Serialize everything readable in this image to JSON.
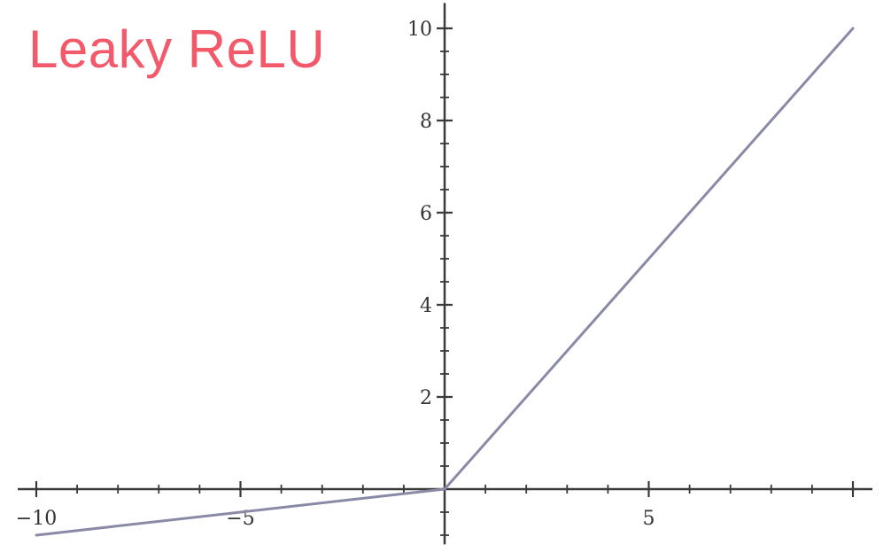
{
  "chart_data": {
    "type": "line",
    "title": "Leaky ReLU",
    "xlabel": "",
    "ylabel": "",
    "xlim": [
      -10,
      10
    ],
    "ylim": [
      -1.2,
      10.5
    ],
    "x_ticks": [
      -10,
      -5,
      5
    ],
    "x_tick_labels": [
      "−10",
      "−5",
      "5"
    ],
    "y_ticks": [
      2,
      4,
      6,
      8,
      10
    ],
    "y_tick_labels": [
      "2",
      "4",
      "6",
      "8",
      "10"
    ],
    "grid": false,
    "series": [
      {
        "points": [
          [
            -10,
            -1
          ],
          [
            0,
            0
          ],
          [
            10,
            10
          ]
        ]
      }
    ]
  },
  "colors": {
    "title": "#f25a6c",
    "line": "#8a8aa8",
    "axis": "#3a3a3a",
    "tick_label": "#333333"
  }
}
